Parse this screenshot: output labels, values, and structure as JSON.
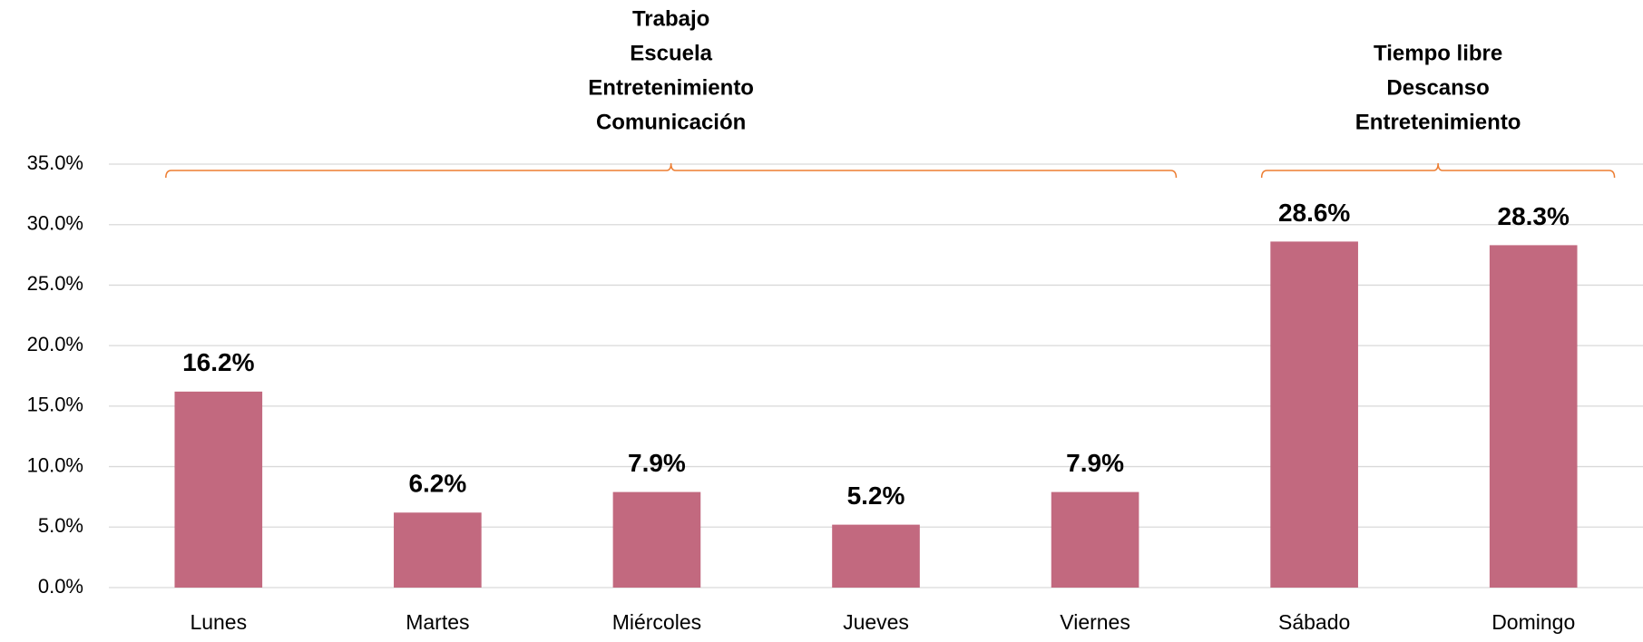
{
  "chart_data": {
    "type": "bar",
    "categories": [
      "Lunes",
      "Martes",
      "Miércoles",
      "Jueves",
      "Viernes",
      "Sábado",
      "Domingo"
    ],
    "values": [
      16.2,
      6.2,
      7.9,
      5.2,
      7.9,
      28.6,
      28.3
    ],
    "value_labels": [
      "16.2%",
      "6.2%",
      "7.9%",
      "5.2%",
      "7.9%",
      "28.6%",
      "28.3%"
    ],
    "color": "#c2697f",
    "ylim": [
      0,
      35
    ],
    "yticks": [
      {
        "value": 0,
        "label": "0.0%"
      },
      {
        "value": 5,
        "label": "5.0%"
      },
      {
        "value": 10,
        "label": "10.0%"
      },
      {
        "value": 15,
        "label": "15.0%"
      },
      {
        "value": 20,
        "label": "20.0%"
      },
      {
        "value": 25,
        "label": "25.0%"
      },
      {
        "value": 30,
        "label": "30.0%"
      },
      {
        "value": 35,
        "label": "35.0%"
      }
    ],
    "grid": true,
    "annotations": [
      {
        "labels": [
          "Trabajo",
          "Escuela",
          "Entretenimiento",
          "Comunicación"
        ],
        "from": "Lunes",
        "to": "Viernes",
        "color": "#ed7d31"
      },
      {
        "labels": [
          "Tiempo libre",
          "Descanso",
          "Entretenimiento"
        ],
        "from": "Sábado",
        "to": "Domingo",
        "color": "#ed7d31"
      }
    ]
  }
}
